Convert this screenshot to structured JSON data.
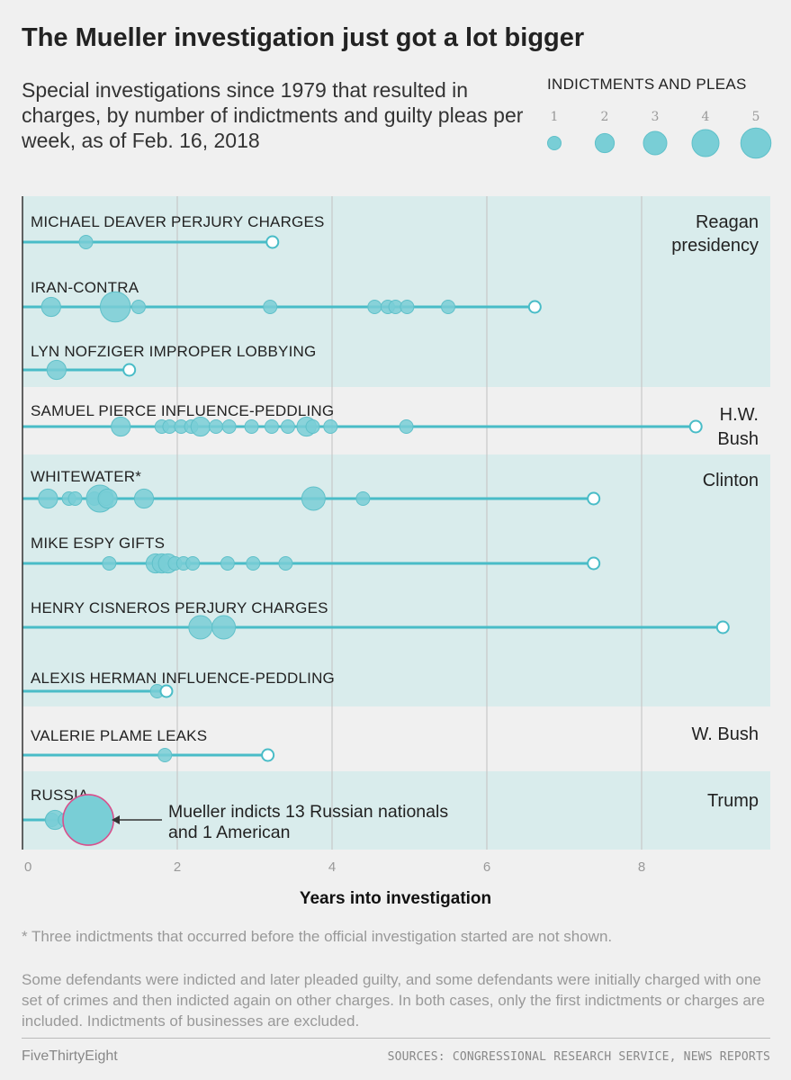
{
  "title": "The Mueller investigation just got a lot bigger",
  "subtitle": "Special investigations since 1979 that resulted in charges, by number of indictments and guilty pleas per week, as of Feb. 16, 2018",
  "legend": {
    "title": "INDICTMENTS AND PLEAS",
    "sizes": [
      "1",
      "2",
      "3",
      "4",
      "5"
    ]
  },
  "colors": {
    "bubble": "#79ced6",
    "bubble_stroke": "#5fc0c9",
    "line": "#49bcc7",
    "band": "#d9ecec",
    "highlight_stroke": "#d94f8c"
  },
  "chart_data": {
    "type": "scatter",
    "xlabel": "Years into investigation",
    "xlim": [
      0,
      9.7
    ],
    "xticks": [
      "0",
      "2",
      "4",
      "6",
      "8"
    ],
    "grid": true,
    "eras": [
      {
        "name": "Reagan presidency",
        "lines": [
          "Reagan",
          "presidency"
        ]
      },
      {
        "name": "H.W. Bush",
        "lines": [
          "H.W.",
          "Bush"
        ]
      },
      {
        "name": "Clinton",
        "lines": [
          "Clinton"
        ]
      },
      {
        "name": "W. Bush",
        "lines": [
          "W. Bush"
        ]
      },
      {
        "name": "Trump",
        "lines": [
          "Trump"
        ]
      }
    ],
    "series": [
      {
        "name": "MICHAEL DEAVER PERJURY CHARGES",
        "era": 0,
        "end": 3.23,
        "points": [
          [
            0.82,
            1
          ]
        ]
      },
      {
        "name": "IRAN-CONTRA",
        "era": 0,
        "end": 6.62,
        "points": [
          [
            0.37,
            2
          ],
          [
            1.2,
            5
          ],
          [
            1.5,
            1
          ],
          [
            3.2,
            1
          ],
          [
            4.55,
            1
          ],
          [
            4.72,
            1
          ],
          [
            4.82,
            1
          ],
          [
            4.97,
            1
          ],
          [
            5.5,
            1
          ]
        ]
      },
      {
        "name": "LYN NOFZIGER IMPROPER LOBBYING",
        "era": 0,
        "end": 1.38,
        "points": [
          [
            0.44,
            2
          ]
        ]
      },
      {
        "name": "SAMUEL PIERCE INFLUENCE-PEDDLING",
        "era": 1,
        "end": 8.7,
        "points": [
          [
            1.27,
            2
          ],
          [
            1.8,
            1
          ],
          [
            1.9,
            1
          ],
          [
            2.05,
            1
          ],
          [
            2.18,
            1
          ],
          [
            2.3,
            2
          ],
          [
            2.5,
            1
          ],
          [
            2.67,
            1
          ],
          [
            2.96,
            1
          ],
          [
            3.22,
            1
          ],
          [
            3.43,
            1
          ],
          [
            3.67,
            2
          ],
          [
            3.75,
            1
          ],
          [
            3.98,
            1
          ],
          [
            4.96,
            1
          ]
        ]
      },
      {
        "name": "WHITEWATER*",
        "era": 2,
        "end": 7.38,
        "points": [
          [
            0.33,
            2
          ],
          [
            0.6,
            1
          ],
          [
            0.68,
            1
          ],
          [
            0.93,
            1
          ],
          [
            1.0,
            4
          ],
          [
            1.08,
            1
          ],
          [
            1.1,
            2
          ],
          [
            1.57,
            2
          ],
          [
            3.76,
            3
          ],
          [
            4.4,
            1
          ]
        ]
      },
      {
        "name": "MIKE ESPY GIFTS",
        "era": 2,
        "end": 7.38,
        "points": [
          [
            1.12,
            1
          ],
          [
            1.72,
            2
          ],
          [
            1.8,
            2
          ],
          [
            1.88,
            2
          ],
          [
            1.97,
            1
          ],
          [
            2.08,
            1
          ],
          [
            2.2,
            1
          ],
          [
            2.65,
            1
          ],
          [
            2.98,
            1
          ],
          [
            3.4,
            1
          ]
        ]
      },
      {
        "name": "HENRY CISNEROS PERJURY CHARGES",
        "era": 2,
        "end": 9.05,
        "points": [
          [
            2.3,
            3
          ],
          [
            2.6,
            3
          ]
        ]
      },
      {
        "name": "ALEXIS HERMAN INFLUENCE-PEDDLING",
        "era": 2,
        "end": 1.86,
        "points": [
          [
            1.74,
            1
          ]
        ]
      },
      {
        "name": "VALERIE PLAME LEAKS",
        "era": 3,
        "end": 3.17,
        "points": [
          [
            1.84,
            1
          ]
        ]
      },
      {
        "name": "RUSSIA",
        "era": 4,
        "end": null,
        "points": [
          [
            0.38,
            1
          ],
          [
            0.42,
            2
          ],
          [
            0.55,
            1
          ],
          [
            0.85,
            14
          ]
        ]
      }
    ],
    "annotation": {
      "lines": [
        "Mueller indicts 13 Russian nationals",
        "and 1 American"
      ],
      "series": "RUSSIA"
    }
  },
  "footnote": "* Three indictments that occurred before the official investigation started are not shown.",
  "note": "Some defendants were indicted and later pleaded guilty, and some defendants were initially charged with one set of crimes and then indicted again on other charges. In both cases, only the first indictments or charges are included. Indictments of businesses are excluded.",
  "brand": "FiveThirtyEight",
  "source": "SOURCES: CONGRESSIONAL RESEARCH SERVICE, NEWS REPORTS"
}
